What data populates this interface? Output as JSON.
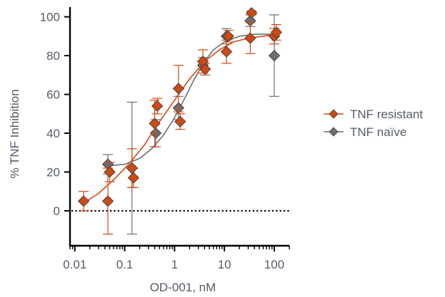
{
  "chart_data": {
    "type": "scatter",
    "xlabel": "OD-001, nM",
    "ylabel": "% TNF Inhibition",
    "x_scale": "log",
    "xlim": [
      0.008,
      200
    ],
    "ylim": [
      -18,
      105
    ],
    "x_ticks": [
      {
        "value": 0.01,
        "label": "0.01"
      },
      {
        "value": 0.1,
        "label": "0.1"
      },
      {
        "value": 1,
        "label": "1"
      },
      {
        "value": 10,
        "label": "10"
      },
      {
        "value": 100,
        "label": "100"
      }
    ],
    "y_ticks": [
      {
        "value": 0,
        "label": "0"
      },
      {
        "value": 20,
        "label": "20"
      },
      {
        "value": 40,
        "label": "40"
      },
      {
        "value": 60,
        "label": "60"
      },
      {
        "value": 80,
        "label": "80"
      },
      {
        "value": 100,
        "label": "100"
      }
    ],
    "reference_line": {
      "y": 0,
      "style": "dotted",
      "color": "#000000"
    },
    "legend_position": "right",
    "series": [
      {
        "name": "TNF naïve",
        "color": "#6d6e70",
        "points": [
          {
            "x": 0.046,
            "y": 24,
            "err": 5
          },
          {
            "x": 0.14,
            "y": 22,
            "err": 34
          },
          {
            "x": 0.42,
            "y": 40,
            "err": 7
          },
          {
            "x": 1.2,
            "y": 53,
            "err": 6
          },
          {
            "x": 3.7,
            "y": 75,
            "err": 4
          },
          {
            "x": 11,
            "y": 90,
            "err": 4
          },
          {
            "x": 33,
            "y": 98,
            "err": 3
          },
          {
            "x": 100,
            "y": 80,
            "err": 21
          }
        ],
        "fit": [
          {
            "x": 0.04,
            "y": 23
          },
          {
            "x": 0.1,
            "y": 24
          },
          {
            "x": 0.2,
            "y": 27
          },
          {
            "x": 0.35,
            "y": 32
          },
          {
            "x": 0.6,
            "y": 39
          },
          {
            "x": 1,
            "y": 48
          },
          {
            "x": 1.6,
            "y": 58
          },
          {
            "x": 2.5,
            "y": 68
          },
          {
            "x": 4,
            "y": 77
          },
          {
            "x": 6,
            "y": 83
          },
          {
            "x": 10,
            "y": 87
          },
          {
            "x": 20,
            "y": 90
          },
          {
            "x": 40,
            "y": 91
          },
          {
            "x": 100,
            "y": 91
          }
        ]
      },
      {
        "name": "TNF resistant",
        "color": "#cf4a12",
        "points": [
          {
            "x": 0.015,
            "y": 5,
            "err": 5
          },
          {
            "x": 0.046,
            "y": 5,
            "err": 17
          },
          {
            "x": 0.05,
            "y": 20,
            "err": 5
          },
          {
            "x": 0.14,
            "y": 22,
            "err": 10
          },
          {
            "x": 0.15,
            "y": 17,
            "err": 5
          },
          {
            "x": 0.4,
            "y": 45,
            "err": 12
          },
          {
            "x": 0.45,
            "y": 54,
            "err": 4
          },
          {
            "x": 1.2,
            "y": 63,
            "err": 12
          },
          {
            "x": 1.3,
            "y": 46,
            "err": 4
          },
          {
            "x": 3.7,
            "y": 77,
            "err": 6
          },
          {
            "x": 4.1,
            "y": 73,
            "err": 3
          },
          {
            "x": 11,
            "y": 82,
            "err": 6
          },
          {
            "x": 12,
            "y": 90,
            "err": 3
          },
          {
            "x": 33,
            "y": 89,
            "err": 8
          },
          {
            "x": 35,
            "y": 102,
            "err": 1
          },
          {
            "x": 100,
            "y": 90,
            "err": 4
          },
          {
            "x": 110,
            "y": 92,
            "err": 4
          }
        ],
        "fit": [
          {
            "x": 0.015,
            "y": 4
          },
          {
            "x": 0.03,
            "y": 9
          },
          {
            "x": 0.06,
            "y": 16
          },
          {
            "x": 0.12,
            "y": 24
          },
          {
            "x": 0.25,
            "y": 34
          },
          {
            "x": 0.5,
            "y": 46
          },
          {
            "x": 1,
            "y": 57
          },
          {
            "x": 2,
            "y": 68
          },
          {
            "x": 4,
            "y": 77
          },
          {
            "x": 8,
            "y": 83
          },
          {
            "x": 15,
            "y": 87
          },
          {
            "x": 30,
            "y": 89
          },
          {
            "x": 60,
            "y": 90
          },
          {
            "x": 110,
            "y": 91
          }
        ]
      }
    ]
  }
}
